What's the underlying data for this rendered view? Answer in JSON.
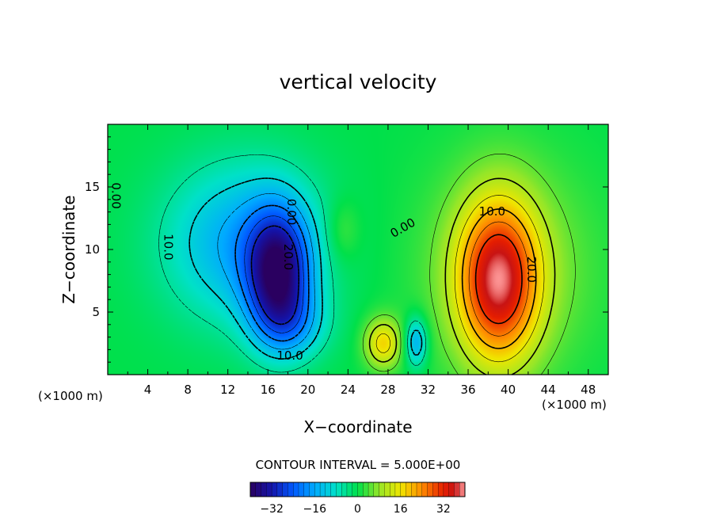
{
  "chart_data": {
    "type": "heatmap",
    "title": "vertical velocity",
    "xlabel": "X−coordinate",
    "ylabel": "Z−coordinate",
    "x_unit": "(×1000 m)",
    "y_unit": "(×1000 m)",
    "xlim": [
      0,
      50
    ],
    "ylim": [
      0,
      20
    ],
    "x_ticks": [
      4,
      8,
      12,
      16,
      20,
      24,
      28,
      32,
      36,
      40,
      44,
      48
    ],
    "x_tick_labels": [
      "4",
      "8",
      "12",
      "16",
      "20",
      "24",
      "28",
      "32",
      "36",
      "40",
      "44",
      "48"
    ],
    "y_ticks": [
      5,
      10,
      15
    ],
    "y_tick_labels": [
      "5",
      "10",
      "15"
    ],
    "contour_interval_text": "CONTOUR INTERVAL = 5.000E+00",
    "colorbar": {
      "range": [
        -40,
        40
      ],
      "ticks": [
        -32,
        -16,
        0,
        16,
        32
      ],
      "tick_labels": [
        "−32",
        "−16",
        "0",
        "16",
        "32"
      ]
    },
    "contour_labels": [
      {
        "text": "0.00",
        "x": 0.8,
        "y": 14.3,
        "rotate": 90
      },
      {
        "text": "10.0",
        "x": 6.0,
        "y": 10.2,
        "rotate": 90
      },
      {
        "text": "0.00",
        "x": 18.3,
        "y": 13.0,
        "rotate": 90
      },
      {
        "text": "20.0",
        "x": 18.0,
        "y": 9.4,
        "rotate": 90
      },
      {
        "text": "10.0",
        "x": 18.2,
        "y": 1.5,
        "rotate": 0
      },
      {
        "text": "0.00",
        "x": 29.5,
        "y": 11.7,
        "rotate": -30
      },
      {
        "text": "10.0",
        "x": 38.4,
        "y": 13.0,
        "rotate": 0
      },
      {
        "text": "20.0",
        "x": 42.3,
        "y": 8.4,
        "rotate": 90
      }
    ],
    "features": [
      {
        "name": "main downdraft",
        "x": 17.0,
        "z": 8.0,
        "value": -32,
        "sx": 2.2,
        "sz": 3.5
      },
      {
        "name": "upper downdraft region",
        "x": 13.5,
        "z": 10.5,
        "value": -16,
        "sx": 5.5,
        "sz": 4.5
      },
      {
        "name": "low downdraft",
        "x": 18.5,
        "z": 4.0,
        "value": -10,
        "sx": 2.5,
        "sz": 2.0
      },
      {
        "name": "main updraft",
        "x": 39.0,
        "z": 7.5,
        "value": 32,
        "sx": 2.8,
        "sz": 4.5
      },
      {
        "name": "updraft envelope",
        "x": 40.0,
        "z": 8.5,
        "value": 8,
        "sx": 6.0,
        "sz": 6.0
      },
      {
        "name": "low updraft",
        "x": 27.5,
        "z": 2.5,
        "value": 17,
        "sx": 1.3,
        "sz": 1.4
      },
      {
        "name": "low downdraft cell",
        "x": 30.8,
        "z": 2.6,
        "value": -16,
        "sx": 0.8,
        "sz": 1.4
      },
      {
        "name": "weak updraft",
        "x": 23.5,
        "z": 11.5,
        "value": 5,
        "sx": 1.2,
        "sz": 1.8
      }
    ]
  },
  "colors": {
    "background": "#00e04a",
    "frame": "#000000",
    "min": "#2a0060",
    "max": "#ff9a9a"
  }
}
